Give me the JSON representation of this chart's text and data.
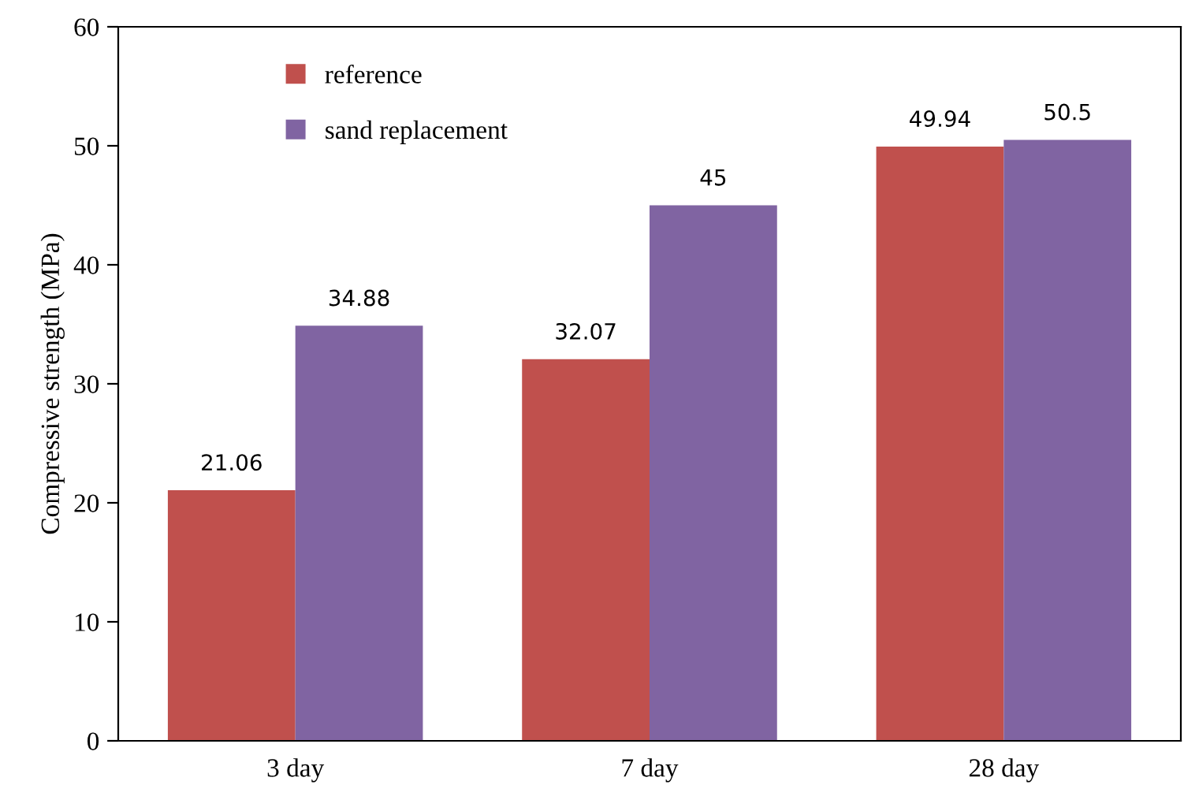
{
  "chart_data": {
    "type": "bar",
    "ylabel": "Compressive strength (MPa)",
    "categories": [
      "3 day",
      "7 day",
      "28 day"
    ],
    "series": [
      {
        "name": "reference",
        "color": "#c0504d",
        "values": [
          21.06,
          32.07,
          49.94
        ]
      },
      {
        "name": "sand replacement",
        "color": "#8064a2",
        "values": [
          34.88,
          45,
          50.5
        ]
      }
    ],
    "ylim": [
      0,
      60
    ],
    "yticks": [
      0,
      10,
      20,
      30,
      40,
      50,
      60
    ],
    "grid": false,
    "legend": "top left",
    "data_labels": true
  }
}
